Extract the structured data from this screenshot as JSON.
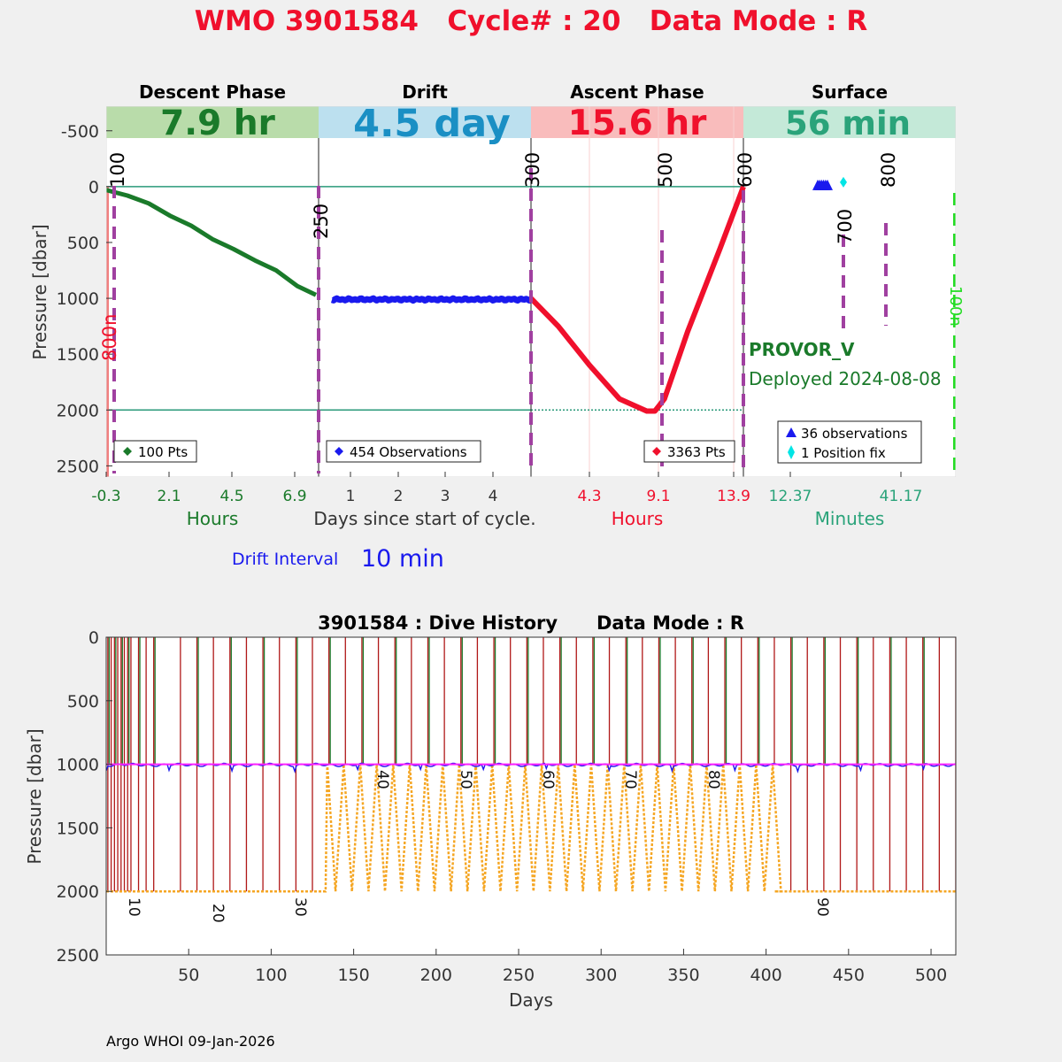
{
  "title": "WMO 3901584   Cycle# : 20   Data Mode : R",
  "colors": {
    "title": "#f0102c",
    "descent": "#1a7a2a",
    "descent_band": "#b9dcaa",
    "drift": "#1a1aee",
    "drift_band": "#bce0ef",
    "drift_value": "#1a8fc4",
    "ascent": "#f0102c",
    "ascent_band": "#f9bcbc",
    "surface": "#2aa37a",
    "surface_band": "#c4e9d8",
    "phase_divider": "#a040a0",
    "ref_line": "#2a9a7a",
    "cyan": "#00e5e5",
    "lime": "#22dd22",
    "dive_vertical": "#b01818",
    "dive_green": "#1a7a2a",
    "dive_park": "#ff22ff",
    "dive_profile": "#f5a623"
  },
  "top_panel": {
    "phases": [
      {
        "name": "Descent Phase",
        "duration": "7.9 hr",
        "unit_label": "Hours",
        "ticks": [
          "-0.3",
          "2.1",
          "4.5",
          "6.9"
        ]
      },
      {
        "name": "Drift",
        "duration": "4.5 day",
        "unit_label": "Days since start of cycle.",
        "ticks": [
          "1",
          "2",
          "3",
          "4"
        ]
      },
      {
        "name": "Ascent Phase",
        "duration": "15.6 hr",
        "unit_label": "Hours",
        "ticks": [
          "4.3",
          "9.1",
          "13.9"
        ]
      },
      {
        "name": "Surface",
        "duration": "56 min",
        "unit_label": "Minutes",
        "ticks": [
          "12.37",
          "41.17"
        ]
      }
    ],
    "ylabel": "Pressure [dbar]",
    "y_ticks": [
      "-500",
      "0",
      "500",
      "1000",
      "1500",
      "2000",
      "2500"
    ],
    "ylim": [
      -720,
      2600
    ],
    "index_markers": [
      "100",
      "250",
      "300",
      "500",
      "600",
      "700",
      "800"
    ],
    "left_marker": "800n",
    "right_marker": "100n",
    "legends": {
      "descent": "100 Pts",
      "drift": "454 Observations",
      "ascent": "3363 Pts",
      "surface_obs": "36 observations",
      "surface_fix": "1 Position fix"
    },
    "float_type": "PROVOR_V",
    "deployed": "Deployed 2024-08-08",
    "drift_interval_label": "Drift Interval",
    "drift_interval_value": "10 min"
  },
  "bottom_panel": {
    "title": "3901584 : Dive History      Data Mode : R",
    "xlabel": "Days",
    "ylabel": "Pressure [dbar]",
    "x_ticks": [
      "50",
      "100",
      "150",
      "200",
      "250",
      "300",
      "350",
      "400",
      "450",
      "500"
    ],
    "y_ticks": [
      "0",
      "500",
      "1000",
      "1500",
      "2000",
      "2500"
    ],
    "cycle_labels": [
      "10",
      "20",
      "30",
      "40",
      "50",
      "60",
      "70",
      "80",
      "90"
    ]
  },
  "chart_data": [
    {
      "type": "scatter",
      "title": "",
      "ylabel": "Pressure [dbar]",
      "ylim": [
        -720,
        2600
      ],
      "series": [
        {
          "name": "Descent",
          "x": [
            -0.3,
            0.5,
            1.3,
            2.1,
            2.9,
            3.7,
            4.5,
            5.3,
            6.1,
            6.9,
            7.6
          ],
          "values": [
            30,
            80,
            150,
            260,
            350,
            470,
            560,
            660,
            750,
            890,
            970
          ]
        },
        {
          "name": "Drift",
          "x": [
            0.3,
            1,
            2,
            3,
            4,
            4.8
          ],
          "values": [
            1000,
            1010,
            1010,
            1010,
            1005,
            1000
          ]
        },
        {
          "name": "Ascent",
          "x": [
            0,
            2,
            4.3,
            6.5,
            8.5,
            9.1,
            9.8,
            11.5,
            13.9,
            15.6
          ],
          "values": [
            1000,
            1250,
            1600,
            1900,
            2010,
            2010,
            1900,
            1300,
            550,
            0
          ]
        },
        {
          "name": "Surface",
          "x": [
            15,
            18,
            22,
            26
          ],
          "values": [
            -5,
            -5,
            -5,
            -5
          ]
        }
      ]
    },
    {
      "type": "line",
      "title": "3901584 : Dive History      Data Mode : R",
      "xlabel": "Days",
      "ylabel": "Pressure [dbar]",
      "xlim": [
        0,
        515
      ],
      "ylim": [
        2500,
        0
      ],
      "series": [
        {
          "name": "Parking depth",
          "x": [
            0,
            100,
            200,
            300,
            400,
            500,
            515
          ],
          "values": [
            1000,
            1000,
            1000,
            1000,
            1000,
            1000,
            1000
          ]
        },
        {
          "name": "Profile depth",
          "x": [
            0,
            133,
            134,
            404,
            405,
            515
          ],
          "values": [
            2000,
            2000,
            1000,
            1000,
            2000,
            2000
          ]
        }
      ]
    }
  ]
}
